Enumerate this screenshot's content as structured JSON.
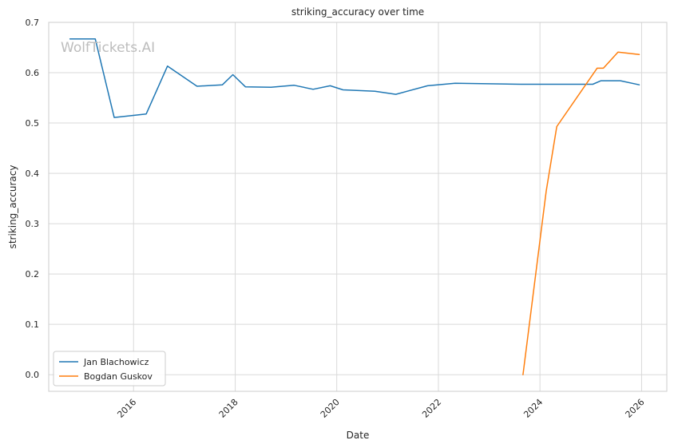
{
  "watermark": "WolfTickets.AI",
  "chart_data": {
    "type": "line",
    "title": "striking_accuracy over time",
    "xlabel": "Date",
    "ylabel": "striking_accuracy",
    "xlim": [
      "2014-05-01",
      "2026-07-01"
    ],
    "ylim": [
      -0.033,
      0.7
    ],
    "x_ticks": [
      "2016",
      "2018",
      "2020",
      "2022",
      "2024",
      "2026"
    ],
    "y_ticks": [
      "0.0",
      "0.1",
      "0.2",
      "0.3",
      "0.4",
      "0.5",
      "0.6",
      "0.7"
    ],
    "grid": true,
    "legend_position": "lower-left",
    "series": [
      {
        "name": "Jan Blachowicz",
        "color": "#1f77b4",
        "points": [
          {
            "x": "2014-10-01",
            "y": 0.667
          },
          {
            "x": "2015-04-01",
            "y": 0.667
          },
          {
            "x": "2015-08-15",
            "y": 0.511
          },
          {
            "x": "2016-04-01",
            "y": 0.518
          },
          {
            "x": "2016-09-01",
            "y": 0.613
          },
          {
            "x": "2017-04-01",
            "y": 0.573
          },
          {
            "x": "2017-10-01",
            "y": 0.576
          },
          {
            "x": "2017-12-15",
            "y": 0.596
          },
          {
            "x": "2018-03-15",
            "y": 0.572
          },
          {
            "x": "2018-09-15",
            "y": 0.571
          },
          {
            "x": "2019-03-01",
            "y": 0.575
          },
          {
            "x": "2019-07-15",
            "y": 0.567
          },
          {
            "x": "2019-11-15",
            "y": 0.574
          },
          {
            "x": "2020-02-15",
            "y": 0.566
          },
          {
            "x": "2020-10-01",
            "y": 0.563
          },
          {
            "x": "2021-03-01",
            "y": 0.557
          },
          {
            "x": "2021-10-15",
            "y": 0.574
          },
          {
            "x": "2022-05-01",
            "y": 0.579
          },
          {
            "x": "2023-08-15",
            "y": 0.577
          },
          {
            "x": "2025-01-15",
            "y": 0.577
          },
          {
            "x": "2025-03-15",
            "y": 0.584
          },
          {
            "x": "2025-08-01",
            "y": 0.584
          },
          {
            "x": "2025-12-15",
            "y": 0.576
          }
        ]
      },
      {
        "name": "Bogdan Guskov",
        "color": "#ff7f0e",
        "points": [
          {
            "x": "2023-09-01",
            "y": 0.0
          },
          {
            "x": "2024-02-15",
            "y": 0.365
          },
          {
            "x": "2024-05-01",
            "y": 0.493
          },
          {
            "x": "2025-02-15",
            "y": 0.609
          },
          {
            "x": "2025-04-01",
            "y": 0.609
          },
          {
            "x": "2025-07-15",
            "y": 0.641
          },
          {
            "x": "2025-12-15",
            "y": 0.636
          }
        ]
      }
    ]
  }
}
